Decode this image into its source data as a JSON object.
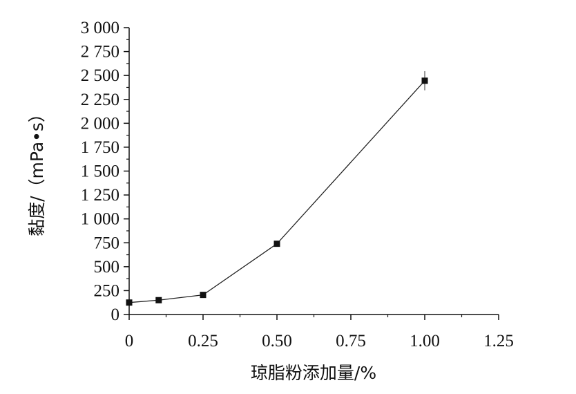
{
  "chart_data": {
    "type": "line",
    "title": "",
    "xlabel": "琼脂粉添加量/%",
    "ylabel": "黏度/（mPa•s）",
    "xlim": [
      0,
      1.25
    ],
    "ylim": [
      0,
      3000
    ],
    "x_ticks": [
      0,
      0.25,
      0.5,
      0.75,
      1.0,
      1.25
    ],
    "x_tick_labels": [
      "0",
      "0.25",
      "0.50",
      "0.75",
      "1.00",
      "1.25"
    ],
    "y_ticks": [
      0,
      250,
      500,
      750,
      1000,
      1250,
      1500,
      1750,
      2000,
      2250,
      2500,
      2750,
      3000
    ],
    "y_tick_labels": [
      "0",
      "250",
      "500",
      "750",
      "1 000",
      "1 250",
      "1 500",
      "1 750",
      "2 000",
      "2 250",
      "2 500",
      "2 750",
      "3 000"
    ],
    "grid": false,
    "marker": "square",
    "series": [
      {
        "x": [
          0,
          0.1,
          0.25,
          0.5,
          1.0
        ],
        "y": [
          125,
          150,
          205,
          740,
          2445
        ],
        "error": [
          10,
          10,
          15,
          20,
          100
        ]
      }
    ]
  }
}
